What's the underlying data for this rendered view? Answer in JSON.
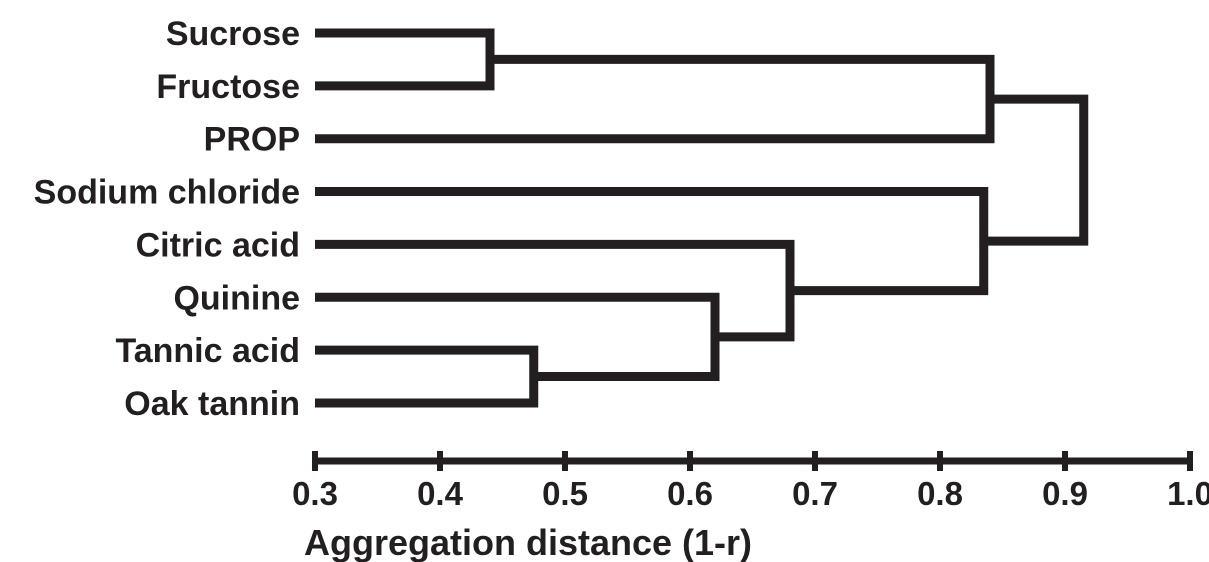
{
  "chart_data": {
    "type": "dendrogram",
    "xlabel": "Aggregation distance (1-r)",
    "ylabel": "",
    "xlim": [
      0.3,
      1.0
    ],
    "x_ticks": [
      "0.3",
      "0.4",
      "0.5",
      "0.6",
      "0.7",
      "0.8",
      "0.9",
      "1.0"
    ],
    "grid": false,
    "line_color": "#231f20",
    "leaves": [
      "Sucrose",
      "Fructose",
      "PROP",
      "Sodium chloride",
      "Citric acid",
      "Quinine",
      "Tannic acid",
      "Oak tannin"
    ],
    "merges": [
      {
        "members": [
          "Sucrose",
          "Fructose"
        ],
        "distance": 0.44
      },
      {
        "members": [
          "Tannic acid",
          "Oak tannin"
        ],
        "distance": 0.475
      },
      {
        "members": [
          "Quinine",
          "Tannic acid",
          "Oak tannin"
        ],
        "distance": 0.62
      },
      {
        "members": [
          "Citric acid",
          "Quinine",
          "Tannic acid",
          "Oak tannin"
        ],
        "distance": 0.68
      },
      {
        "members": [
          "Sodium chloride",
          "Citric acid",
          "Quinine",
          "Tannic acid",
          "Oak tannin"
        ],
        "distance": 0.835
      },
      {
        "members": [
          "Sucrose",
          "Fructose",
          "PROP"
        ],
        "distance": 0.84
      },
      {
        "members": [
          "Sucrose",
          "Fructose",
          "PROP",
          "Sodium chloride",
          "Citric acid",
          "Quinine",
          "Tannic acid",
          "Oak tannin"
        ],
        "distance": 0.915
      }
    ]
  }
}
